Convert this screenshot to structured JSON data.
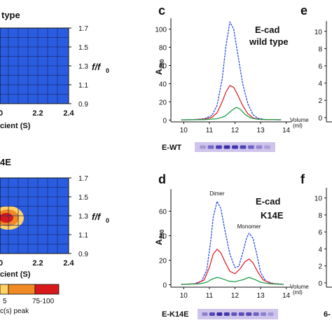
{
  "chart_data": [
    {
      "panel": "a (partial)",
      "type": "heatmap",
      "title_fragment": "type",
      "ylabel": "f/f0",
      "y_ticks": [
        "1.7",
        "1.5",
        "1.3",
        "1.1",
        "0.9"
      ],
      "x_ticks": [
        "0",
        "2.2",
        "2.4"
      ],
      "xlabel_fragment": "cient (S)",
      "grid": true,
      "fill_color": "#2a5ce0",
      "peak": null
    },
    {
      "panel": "b (partial)",
      "type": "heatmap",
      "title_fragment": "4E",
      "ylabel": "f/f0",
      "y_ticks": [
        "1.7",
        "1.5",
        "1.3",
        "1.1",
        "0.9"
      ],
      "x_ticks": [
        "0",
        "2.2",
        "2.4"
      ],
      "xlabel_fragment": "cient (S)",
      "grid": true,
      "fill_color": "#2a5ce0",
      "peak": {
        "x": 1.96,
        "y": 1.27,
        "levels": [
          "#ffd166",
          "#f08a24",
          "#d7191c"
        ]
      },
      "legend": {
        "levels": [
          {
            "label": "5",
            "color": "#f08a24"
          },
          {
            "label": "75-100",
            "color": "#d7191c"
          }
        ],
        "caption_fragment": "c(s) peak"
      }
    },
    {
      "panel": "c",
      "type": "line",
      "panel_label": "c",
      "annotation": [
        "E-cad",
        "wild type"
      ],
      "ylabel": "A280",
      "xlabel": "Volume (ml)",
      "xlabel_lines": [
        "Volume",
        "(ml)"
      ],
      "xlim": [
        9.5,
        14.2
      ],
      "ylim": [
        -2,
        112
      ],
      "x_ticks": [
        10,
        11,
        12,
        13,
        14
      ],
      "y_ticks": [
        0,
        20,
        40,
        60,
        80,
        100
      ],
      "series": [
        {
          "color": "#2b4ee6",
          "dashed": true,
          "points": [
            [
              9.9,
              0.2
            ],
            [
              10.4,
              0.5
            ],
            [
              10.8,
              1.5
            ],
            [
              11.1,
              5
            ],
            [
              11.3,
              16
            ],
            [
              11.5,
              45
            ],
            [
              11.65,
              82
            ],
            [
              11.8,
              108
            ],
            [
              11.95,
              100
            ],
            [
              12.1,
              74
            ],
            [
              12.3,
              40
            ],
            [
              12.5,
              18
            ],
            [
              12.7,
              6
            ],
            [
              12.9,
              2
            ],
            [
              13.2,
              0.5
            ],
            [
              13.8,
              0.3
            ]
          ]
        },
        {
          "color": "#e0242c",
          "points": [
            [
              9.9,
              0.2
            ],
            [
              10.4,
              0.4
            ],
            [
              10.8,
              1
            ],
            [
              11.1,
              3
            ],
            [
              11.3,
              8
            ],
            [
              11.5,
              20
            ],
            [
              11.65,
              31
            ],
            [
              11.8,
              38
            ],
            [
              11.95,
              36
            ],
            [
              12.1,
              28
            ],
            [
              12.3,
              16
            ],
            [
              12.5,
              7
            ],
            [
              12.7,
              2.5
            ],
            [
              13,
              0.6
            ],
            [
              13.8,
              0.3
            ]
          ]
        },
        {
          "color": "#1f9e48",
          "points": [
            [
              9.9,
              0.2
            ],
            [
              10.8,
              0.5
            ],
            [
              11.3,
              1.5
            ],
            [
              11.6,
              4
            ],
            [
              11.85,
              10
            ],
            [
              12.05,
              14
            ],
            [
              12.2,
              12
            ],
            [
              12.4,
              6
            ],
            [
              12.6,
              2.5
            ],
            [
              12.9,
              0.8
            ],
            [
              13.8,
              0.3
            ]
          ]
        }
      ],
      "gel": {
        "label": "E-WT",
        "band_intensity": [
          0.15,
          0.55,
          0.9,
          1.0,
          0.95,
          0.85,
          0.6,
          0.3,
          0.12
        ]
      }
    },
    {
      "panel": "d",
      "type": "line",
      "panel_label": "d",
      "annotation": [
        "E-cad",
        "K14E"
      ],
      "peak_labels": [
        {
          "text": "Dimer",
          "x": 11.3,
          "y": 73
        },
        {
          "text": "Monomer",
          "x": 12.55,
          "y": 46
        }
      ],
      "ylabel": "A280",
      "xlabel": "Volume (ml)",
      "xlabel_lines": [
        "Volume",
        "(ml)"
      ],
      "xlim": [
        9.5,
        14.2
      ],
      "ylim": [
        -2,
        78
      ],
      "x_ticks": [
        10,
        11,
        12,
        13,
        14
      ],
      "y_ticks": [
        0,
        20,
        40,
        60
      ],
      "series": [
        {
          "color": "#2b4ee6",
          "dashed": true,
          "points": [
            [
              9.9,
              0.3
            ],
            [
              10.4,
              0.8
            ],
            [
              10.7,
              3
            ],
            [
              10.9,
              12
            ],
            [
              11.05,
              35
            ],
            [
              11.15,
              55
            ],
            [
              11.3,
              68
            ],
            [
              11.45,
              62
            ],
            [
              11.6,
              45
            ],
            [
              11.8,
              25
            ],
            [
              12.0,
              14
            ],
            [
              12.15,
              15
            ],
            [
              12.3,
              26
            ],
            [
              12.45,
              38
            ],
            [
              12.55,
              42
            ],
            [
              12.7,
              38
            ],
            [
              12.85,
              25
            ],
            [
              13.0,
              10
            ],
            [
              13.2,
              3
            ],
            [
              13.5,
              1
            ],
            [
              13.9,
              0.4
            ]
          ]
        },
        {
          "color": "#e0242c",
          "points": [
            [
              9.9,
              0.3
            ],
            [
              10.5,
              0.8
            ],
            [
              10.8,
              4
            ],
            [
              11.0,
              14
            ],
            [
              11.15,
              25
            ],
            [
              11.3,
              29
            ],
            [
              11.45,
              26
            ],
            [
              11.6,
              19
            ],
            [
              11.8,
              11
            ],
            [
              12.0,
              9
            ],
            [
              12.2,
              13
            ],
            [
              12.4,
              19
            ],
            [
              12.55,
              21
            ],
            [
              12.7,
              18
            ],
            [
              12.9,
              10
            ],
            [
              13.1,
              4
            ],
            [
              13.4,
              1
            ],
            [
              13.9,
              0.3
            ]
          ]
        },
        {
          "color": "#1f9e48",
          "points": [
            [
              9.9,
              0.3
            ],
            [
              10.6,
              0.6
            ],
            [
              10.9,
              2
            ],
            [
              11.1,
              4.5
            ],
            [
              11.3,
              6
            ],
            [
              11.5,
              5
            ],
            [
              11.75,
              3
            ],
            [
              12.0,
              2.5
            ],
            [
              12.3,
              4
            ],
            [
              12.55,
              6
            ],
            [
              12.75,
              4.5
            ],
            [
              13.0,
              2
            ],
            [
              13.4,
              0.6
            ],
            [
              13.9,
              0.3
            ]
          ]
        }
      ],
      "gel": {
        "label": "E-K14E",
        "band_intensity": [
          0.35,
          0.8,
          1.0,
          0.9,
          0.7,
          0.75,
          0.8,
          0.6,
          0.35,
          0.15
        ]
      }
    },
    {
      "panel": "e (partial)",
      "type": "line",
      "panel_label": "e",
      "y_ticks": [
        0,
        2,
        4,
        6,
        8,
        10
      ],
      "ylim": [
        -0.5,
        11.2
      ]
    },
    {
      "panel": "f (partial)",
      "type": "line",
      "panel_label": "f",
      "y_ticks": [
        0,
        2,
        4,
        6,
        8,
        10
      ],
      "ylim": [
        -0.5,
        11.2
      ],
      "gel": {
        "label": "6-"
      }
    }
  ]
}
